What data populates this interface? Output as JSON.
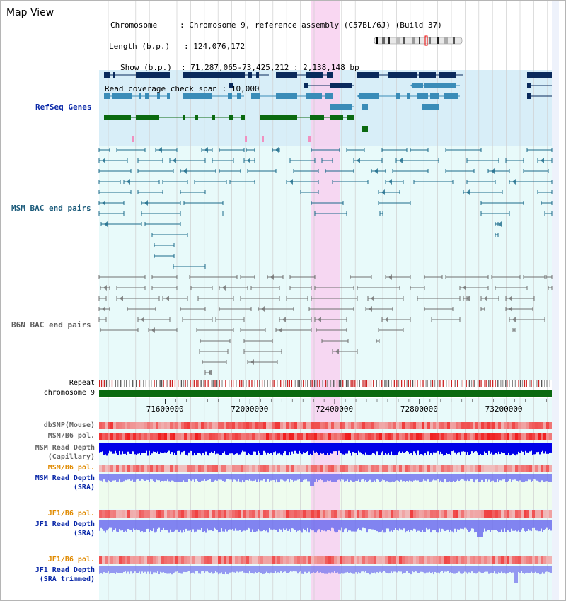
{
  "title": "Map View",
  "header": {
    "chromosome_label": "Chromosome",
    "chromosome_value": ": Chromosome 9, reference assembly (C57BL/6J) (Build 37)",
    "length_label": "Length (b.p.)",
    "length_value": ": 124,076,172",
    "show_label": "Show (b.p.)",
    "show_value": ": 71,287,065-73,425,212 : 2,138,148 bp",
    "span_label": "Read coverage check span",
    "span_value": ": 10,000"
  },
  "tracks": {
    "refseq": "RefSeq Genes",
    "msm_bac": "MSM BAC end pairs",
    "b6n_bac": "B6N BAC end pairs",
    "repeat": "Repeat",
    "chromosome": "chromosome 9",
    "dbsnp": "dbSNP(Mouse)",
    "msm_b6_pol_1": "MSM/B6 pol.",
    "msm_read_depth_cap_1": "MSM Read Depth",
    "msm_read_depth_cap_2": "(Capillary)",
    "msm_b6_pol_2": "MSM/B6 pol.",
    "msm_read_depth_sra_1": "MSM Read Depth",
    "msm_read_depth_sra_2": "(SRA)",
    "jf1_b6_pol_1": "JF1/B6 pol.",
    "jf1_read_depth_sra_1": "JF1 Read Depth",
    "jf1_read_depth_sra_2": "(SRA)",
    "jf1_b6_pol_2": "JF1/B6 pol.",
    "jf1_read_depth_trim_1": "JF1 Read Depth",
    "jf1_read_depth_trim_2": "(SRA trimmed)"
  },
  "axis": {
    "range_bp": [
      71287065,
      73425212
    ],
    "ticks": [
      {
        "label": "71600000",
        "bp": 71600000
      },
      {
        "label": "72000000",
        "bp": 72000000
      },
      {
        "label": "72400000",
        "bp": 72400000
      },
      {
        "label": "72800000",
        "bp": 72800000
      },
      {
        "label": "73200000",
        "bp": 73200000
      }
    ]
  },
  "colors": {
    "highlight": "#f8d0f0",
    "refseq_bg": "#d8eef8",
    "bac_bg": "#e8fafa",
    "gene_navy": "#0a2a5c",
    "gene_teal": "#3a8cb8",
    "gene_green": "#0a6a10",
    "msm_color": "#1a6a8a",
    "b6n_color": "#707070",
    "refseq_label": "#0a28a8",
    "msm_label": "#1a5a7a",
    "b6n_label": "#606060",
    "pol_label_orange": "#e08a00",
    "depth_blue": "#0000e0"
  }
}
